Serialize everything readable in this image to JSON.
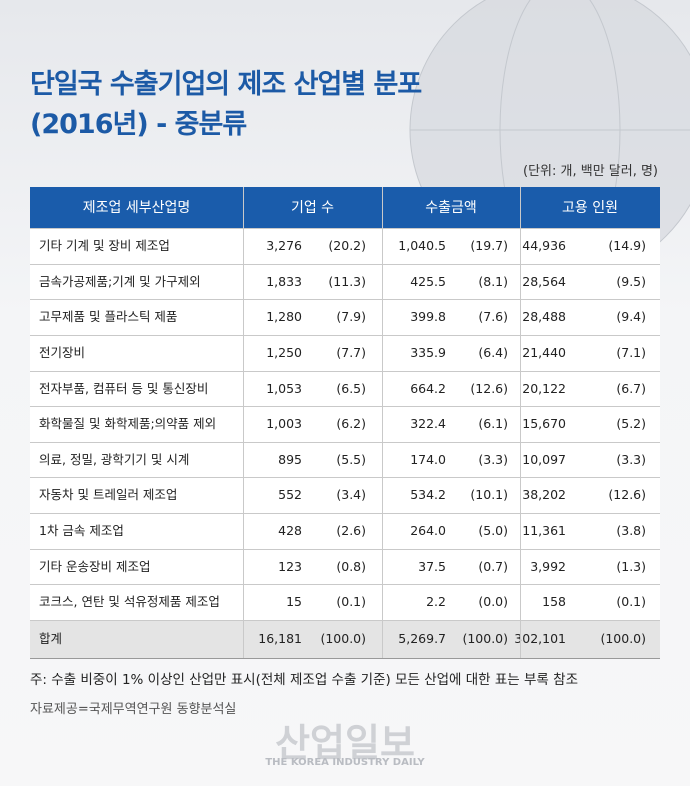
{
  "header": {
    "title_lines": [
      "단일국 수출기업의 제조 산업별 분포",
      "(2016년) - 중분류"
    ],
    "unit": "(단위: 개, 백만 달러, 명)"
  },
  "table": {
    "columns": [
      "제조업 세부산업명",
      "기업 수",
      "수출금액",
      "고용 인원"
    ],
    "rows": [
      [
        "기타 기계 및 장비 제조업",
        "3,276",
        "(20.2)",
        "1,040.5",
        "(19.7)",
        "44,936",
        "(14.9)"
      ],
      [
        "금속가공제품;기계 및 가구제외",
        "1,833",
        "(11.3)",
        "425.5",
        "(8.1)",
        "28,564",
        "(9.5)"
      ],
      [
        "고무제품 및 플라스틱 제품",
        "1,280",
        "(7.9)",
        "399.8",
        "(7.6)",
        "28,488",
        "(9.4)"
      ],
      [
        "전기장비",
        "1,250",
        "(7.7)",
        "335.9",
        "(6.4)",
        "21,440",
        "(7.1)"
      ],
      [
        "전자부품, 컴퓨터 등 및 통신장비",
        "1,053",
        "(6.5)",
        "664.2",
        "(12.6)",
        "20,122",
        "(6.7)"
      ],
      [
        "화학물질 및 화학제품;의약품 제외",
        "1,003",
        "(6.2)",
        "322.4",
        "(6.1)",
        "15,670",
        "(5.2)"
      ],
      [
        "의료, 정밀, 광학기기 및 시계",
        "895",
        "(5.5)",
        "174.0",
        "(3.3)",
        "10,097",
        "(3.3)"
      ],
      [
        "자동차 및 트레일러 제조업",
        "552",
        "(3.4)",
        "534.2",
        "(10.1)",
        "38,202",
        "(12.6)"
      ],
      [
        "1차 금속 제조업",
        "428",
        "(2.6)",
        "264.0",
        "(5.0)",
        "11,361",
        "(3.8)"
      ],
      [
        "기타 운송장비 제조업",
        "123",
        "(0.8)",
        "37.5",
        "(0.7)",
        "3,992",
        "(1.3)"
      ],
      [
        "코크스, 연탄 및 석유정제품 제조업",
        "15",
        "(0.1)",
        "2.2",
        "(0.0)",
        "158",
        "(0.1)"
      ]
    ],
    "total": [
      "합계",
      "16,181",
      "(100.0)",
      "5,269.7",
      "(100.0)",
      "302,101",
      "(100.0)"
    ]
  },
  "footnote": "주: 수출 비중이 1% 이상인 산업만 표시(전체 제조업 수출 기준) 모든 산업에 대한 표는 부록 참조",
  "source": "자료제공=국제무역연구원 동향분석실",
  "watermark": {
    "title": "산업일보",
    "subtitle": "THE KOREA INDUSTRY DAILY"
  }
}
